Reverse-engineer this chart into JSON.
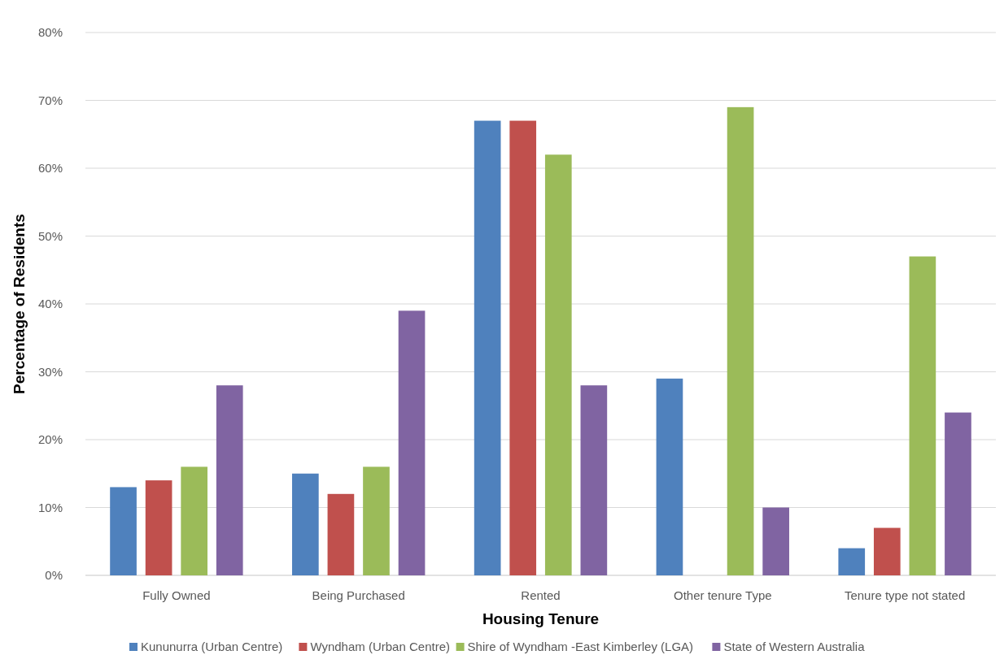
{
  "chart_data": {
    "type": "bar",
    "xlabel": "Housing Tenure",
    "ylabel": "Percentage of Residents",
    "categories": [
      "Fully Owned",
      "Being Purchased",
      "Rented",
      "Other tenure Type",
      "Tenure type not stated"
    ],
    "series": [
      {
        "name": "Kununurra (Urban Centre)",
        "color": "#4f81bd",
        "values": [
          13,
          15,
          67,
          29,
          4
        ]
      },
      {
        "name": "Wyndham (Urban Centre)",
        "color": "#c0504d",
        "values": [
          14,
          12,
          67,
          null,
          7
        ]
      },
      {
        "name": "Shire of Wyndham -East Kimberley (LGA)",
        "color": "#9bbb59",
        "values": [
          16,
          16,
          62,
          69,
          47
        ]
      },
      {
        "name": "State of Western Australia",
        "color": "#8064a2",
        "values": [
          28,
          39,
          28,
          10,
          24
        ]
      }
    ],
    "ylim": [
      0,
      80
    ],
    "yticks": [
      {
        "value": 0,
        "label": "0%"
      },
      {
        "value": 10,
        "label": "10%"
      },
      {
        "value": 20,
        "label": "20%"
      },
      {
        "value": 30,
        "label": "30%"
      },
      {
        "value": 40,
        "label": "40%"
      },
      {
        "value": 50,
        "label": "50%"
      },
      {
        "value": 60,
        "label": "60%"
      },
      {
        "value": 70,
        "label": "70%"
      },
      {
        "value": 80,
        "label": "80%"
      }
    ],
    "grid": "y",
    "legend": "bottom"
  }
}
